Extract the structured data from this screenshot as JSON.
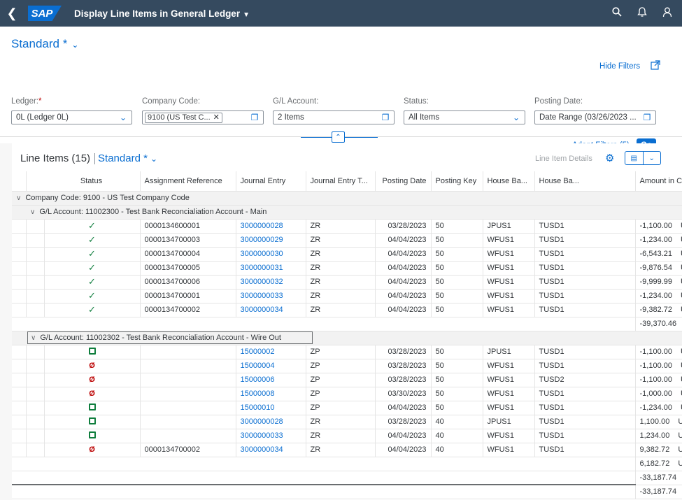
{
  "shell": {
    "logo": "SAP",
    "title": "Display Line Items in General Ledger"
  },
  "filterbar": {
    "variant": "Standard *",
    "hide_filters": "Hide Filters",
    "adapt_filters": "Adapt Filters (5)",
    "go": "Go",
    "fields": {
      "ledger_label": "Ledger:",
      "ledger_value": "0L (Ledger 0L)",
      "company_label": "Company Code:",
      "company_token": "9100 (US Test C...",
      "account_label": "G/L Account:",
      "account_value": "2 Items",
      "status_label": "Status:",
      "status_value": "All Items",
      "posting_label": "Posting Date:",
      "posting_value": "Date Range (03/26/2023 ..."
    }
  },
  "panel": {
    "title": "Line Items (15)",
    "variant": "Standard *",
    "line_item_details": "Line Item Details"
  },
  "table": {
    "columns": [
      "Status",
      "Assignment Reference",
      "Journal Entry",
      "Journal Entry T...",
      "Posting Date",
      "Posting Key",
      "House Ba...",
      "House Ba...",
      "Amount in CC Cr"
    ],
    "company_group": "Company Code: 9100 - US Test Company Code",
    "group1_label": "G/L Account: 11002300 - Test Bank Reconcialiation Account - Main",
    "group1_rows": [
      {
        "assign": "0000134600001",
        "je": "3000000028",
        "type": "ZR",
        "date": "03/28/2023",
        "key": "50",
        "hb": "JPUS1",
        "hba": "TUSD1",
        "amt": "-1,100.00",
        "cur": "USD"
      },
      {
        "assign": "0000134700003",
        "je": "3000000029",
        "type": "ZR",
        "date": "04/04/2023",
        "key": "50",
        "hb": "WFUS1",
        "hba": "TUSD1",
        "amt": "-1,234.00",
        "cur": "USD"
      },
      {
        "assign": "0000134700004",
        "je": "3000000030",
        "type": "ZR",
        "date": "04/04/2023",
        "key": "50",
        "hb": "WFUS1",
        "hba": "TUSD1",
        "amt": "-6,543.21",
        "cur": "USD"
      },
      {
        "assign": "0000134700005",
        "je": "3000000031",
        "type": "ZR",
        "date": "04/04/2023",
        "key": "50",
        "hb": "WFUS1",
        "hba": "TUSD1",
        "amt": "-9,876.54",
        "cur": "USD"
      },
      {
        "assign": "0000134700006",
        "je": "3000000032",
        "type": "ZR",
        "date": "04/04/2023",
        "key": "50",
        "hb": "WFUS1",
        "hba": "TUSD1",
        "amt": "-9,999.99",
        "cur": "USD"
      },
      {
        "assign": "0000134700001",
        "je": "3000000033",
        "type": "ZR",
        "date": "04/04/2023",
        "key": "50",
        "hb": "WFUS1",
        "hba": "TUSD1",
        "amt": "-1,234.00",
        "cur": "USD"
      },
      {
        "assign": "0000134700002",
        "je": "3000000034",
        "type": "ZR",
        "date": "04/04/2023",
        "key": "50",
        "hb": "WFUS1",
        "hba": "TUSD1",
        "amt": "-9,382.72",
        "cur": "USD"
      }
    ],
    "group1_total": "-39,370.46",
    "group2_label": "G/L Account: 11002302 - Test Bank Reconcialiation Account - Wire Out",
    "group2_rows": [
      {
        "status": "square",
        "assign": "",
        "je": "15000002",
        "type": "ZP",
        "date": "03/28/2023",
        "key": "50",
        "hb": "JPUS1",
        "hba": "TUSD1",
        "amt": "-1,100.00",
        "cur": "USD"
      },
      {
        "status": "error",
        "assign": "",
        "je": "15000004",
        "type": "ZP",
        "date": "03/28/2023",
        "key": "50",
        "hb": "WFUS1",
        "hba": "TUSD1",
        "amt": "-1,100.00",
        "cur": "USD"
      },
      {
        "status": "error",
        "assign": "",
        "je": "15000006",
        "type": "ZP",
        "date": "03/28/2023",
        "key": "50",
        "hb": "WFUS1",
        "hba": "TUSD2",
        "amt": "-1,100.00",
        "cur": "USD"
      },
      {
        "status": "error",
        "assign": "",
        "je": "15000008",
        "type": "ZP",
        "date": "03/30/2023",
        "key": "50",
        "hb": "WFUS1",
        "hba": "TUSD1",
        "amt": "-1,000.00",
        "cur": "USD"
      },
      {
        "status": "square",
        "assign": "",
        "je": "15000010",
        "type": "ZP",
        "date": "04/04/2023",
        "key": "50",
        "hb": "WFUS1",
        "hba": "TUSD1",
        "amt": "-1,234.00",
        "cur": "USD"
      },
      {
        "status": "square",
        "assign": "",
        "je": "3000000028",
        "type": "ZR",
        "date": "03/28/2023",
        "key": "40",
        "hb": "JPUS1",
        "hba": "TUSD1",
        "amt": "1,100.00",
        "cur": "USD"
      },
      {
        "status": "square",
        "assign": "",
        "je": "3000000033",
        "type": "ZR",
        "date": "04/04/2023",
        "key": "40",
        "hb": "WFUS1",
        "hba": "TUSD1",
        "amt": "1,234.00",
        "cur": "USD"
      },
      {
        "status": "error",
        "assign": "0000134700002",
        "je": "3000000034",
        "type": "ZR",
        "date": "04/04/2023",
        "key": "40",
        "hb": "WFUS1",
        "hba": "TUSD1",
        "amt": "9,382.72",
        "cur": "USD"
      }
    ],
    "group2_total": "6,182.72",
    "company_total": "-33,187.74",
    "grand_total": "-33,187.74",
    "currency": "USD"
  }
}
